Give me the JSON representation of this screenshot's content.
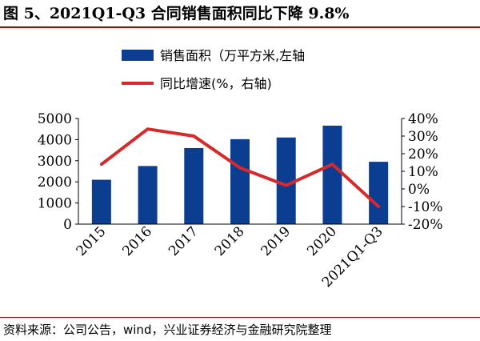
{
  "title": "图 5、2021Q1-Q3 合同销售面积同比下降 9.8%",
  "source": "资料来源：公司公告，wind，兴业证券经济与金融研究院整理",
  "chart_data": {
    "type": "bar",
    "categories": [
      "2015",
      "2016",
      "2017",
      "2018",
      "2019",
      "2020",
      "2021Q1-Q3"
    ],
    "series": [
      {
        "name": "销售面积（万平方米,左轴",
        "type": "bar",
        "axis": "left",
        "color": "#0b3d91",
        "values": [
          2100,
          2750,
          3600,
          4020,
          4100,
          4660,
          2950
        ]
      },
      {
        "name": "同比增速(%，右轴)",
        "type": "line",
        "axis": "right",
        "color": "#d62a2a",
        "values": [
          14,
          34,
          30,
          12,
          2,
          14,
          -10
        ]
      }
    ],
    "yleft": {
      "min": 0,
      "max": 5000,
      "ticks": [
        "0",
        "1000",
        "2000",
        "3000",
        "4000",
        "5000"
      ]
    },
    "yright": {
      "min": -20,
      "max": 40,
      "ticks": [
        "-20%",
        "-10%",
        "0%",
        "10%",
        "20%",
        "30%",
        "40%"
      ]
    }
  }
}
